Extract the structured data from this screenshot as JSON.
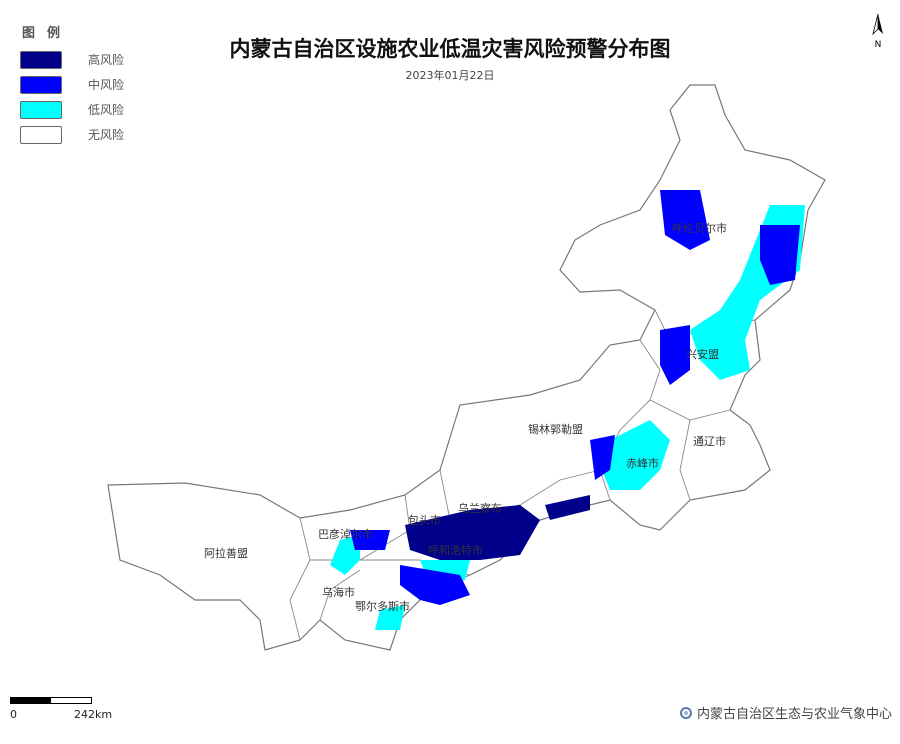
{
  "title": "内蒙古自治区设施农业低温灾害风险预警分布图",
  "date": "2023年01月22日",
  "legend": {
    "title": "图例",
    "items": [
      {
        "label": "高风险",
        "color": "#00008B"
      },
      {
        "label": "中风险",
        "color": "#0000FF"
      },
      {
        "label": "低风险",
        "color": "#00FFFF"
      },
      {
        "label": "无风险",
        "color": "#FFFFFF"
      }
    ]
  },
  "north_arrow": "N",
  "cities": [
    "呼伦贝尔市",
    "兴安盟",
    "锡林郭勒盟",
    "通辽市",
    "赤峰市",
    "乌兰察布",
    "包头市",
    "巴彦淖尔市",
    "呼和浩特市",
    "乌海市",
    "鄂尔多斯市",
    "阿拉善盟"
  ],
  "scale": {
    "start": "0",
    "end": "242km"
  },
  "footer": "内蒙古自治区生态与农业气象中心"
}
